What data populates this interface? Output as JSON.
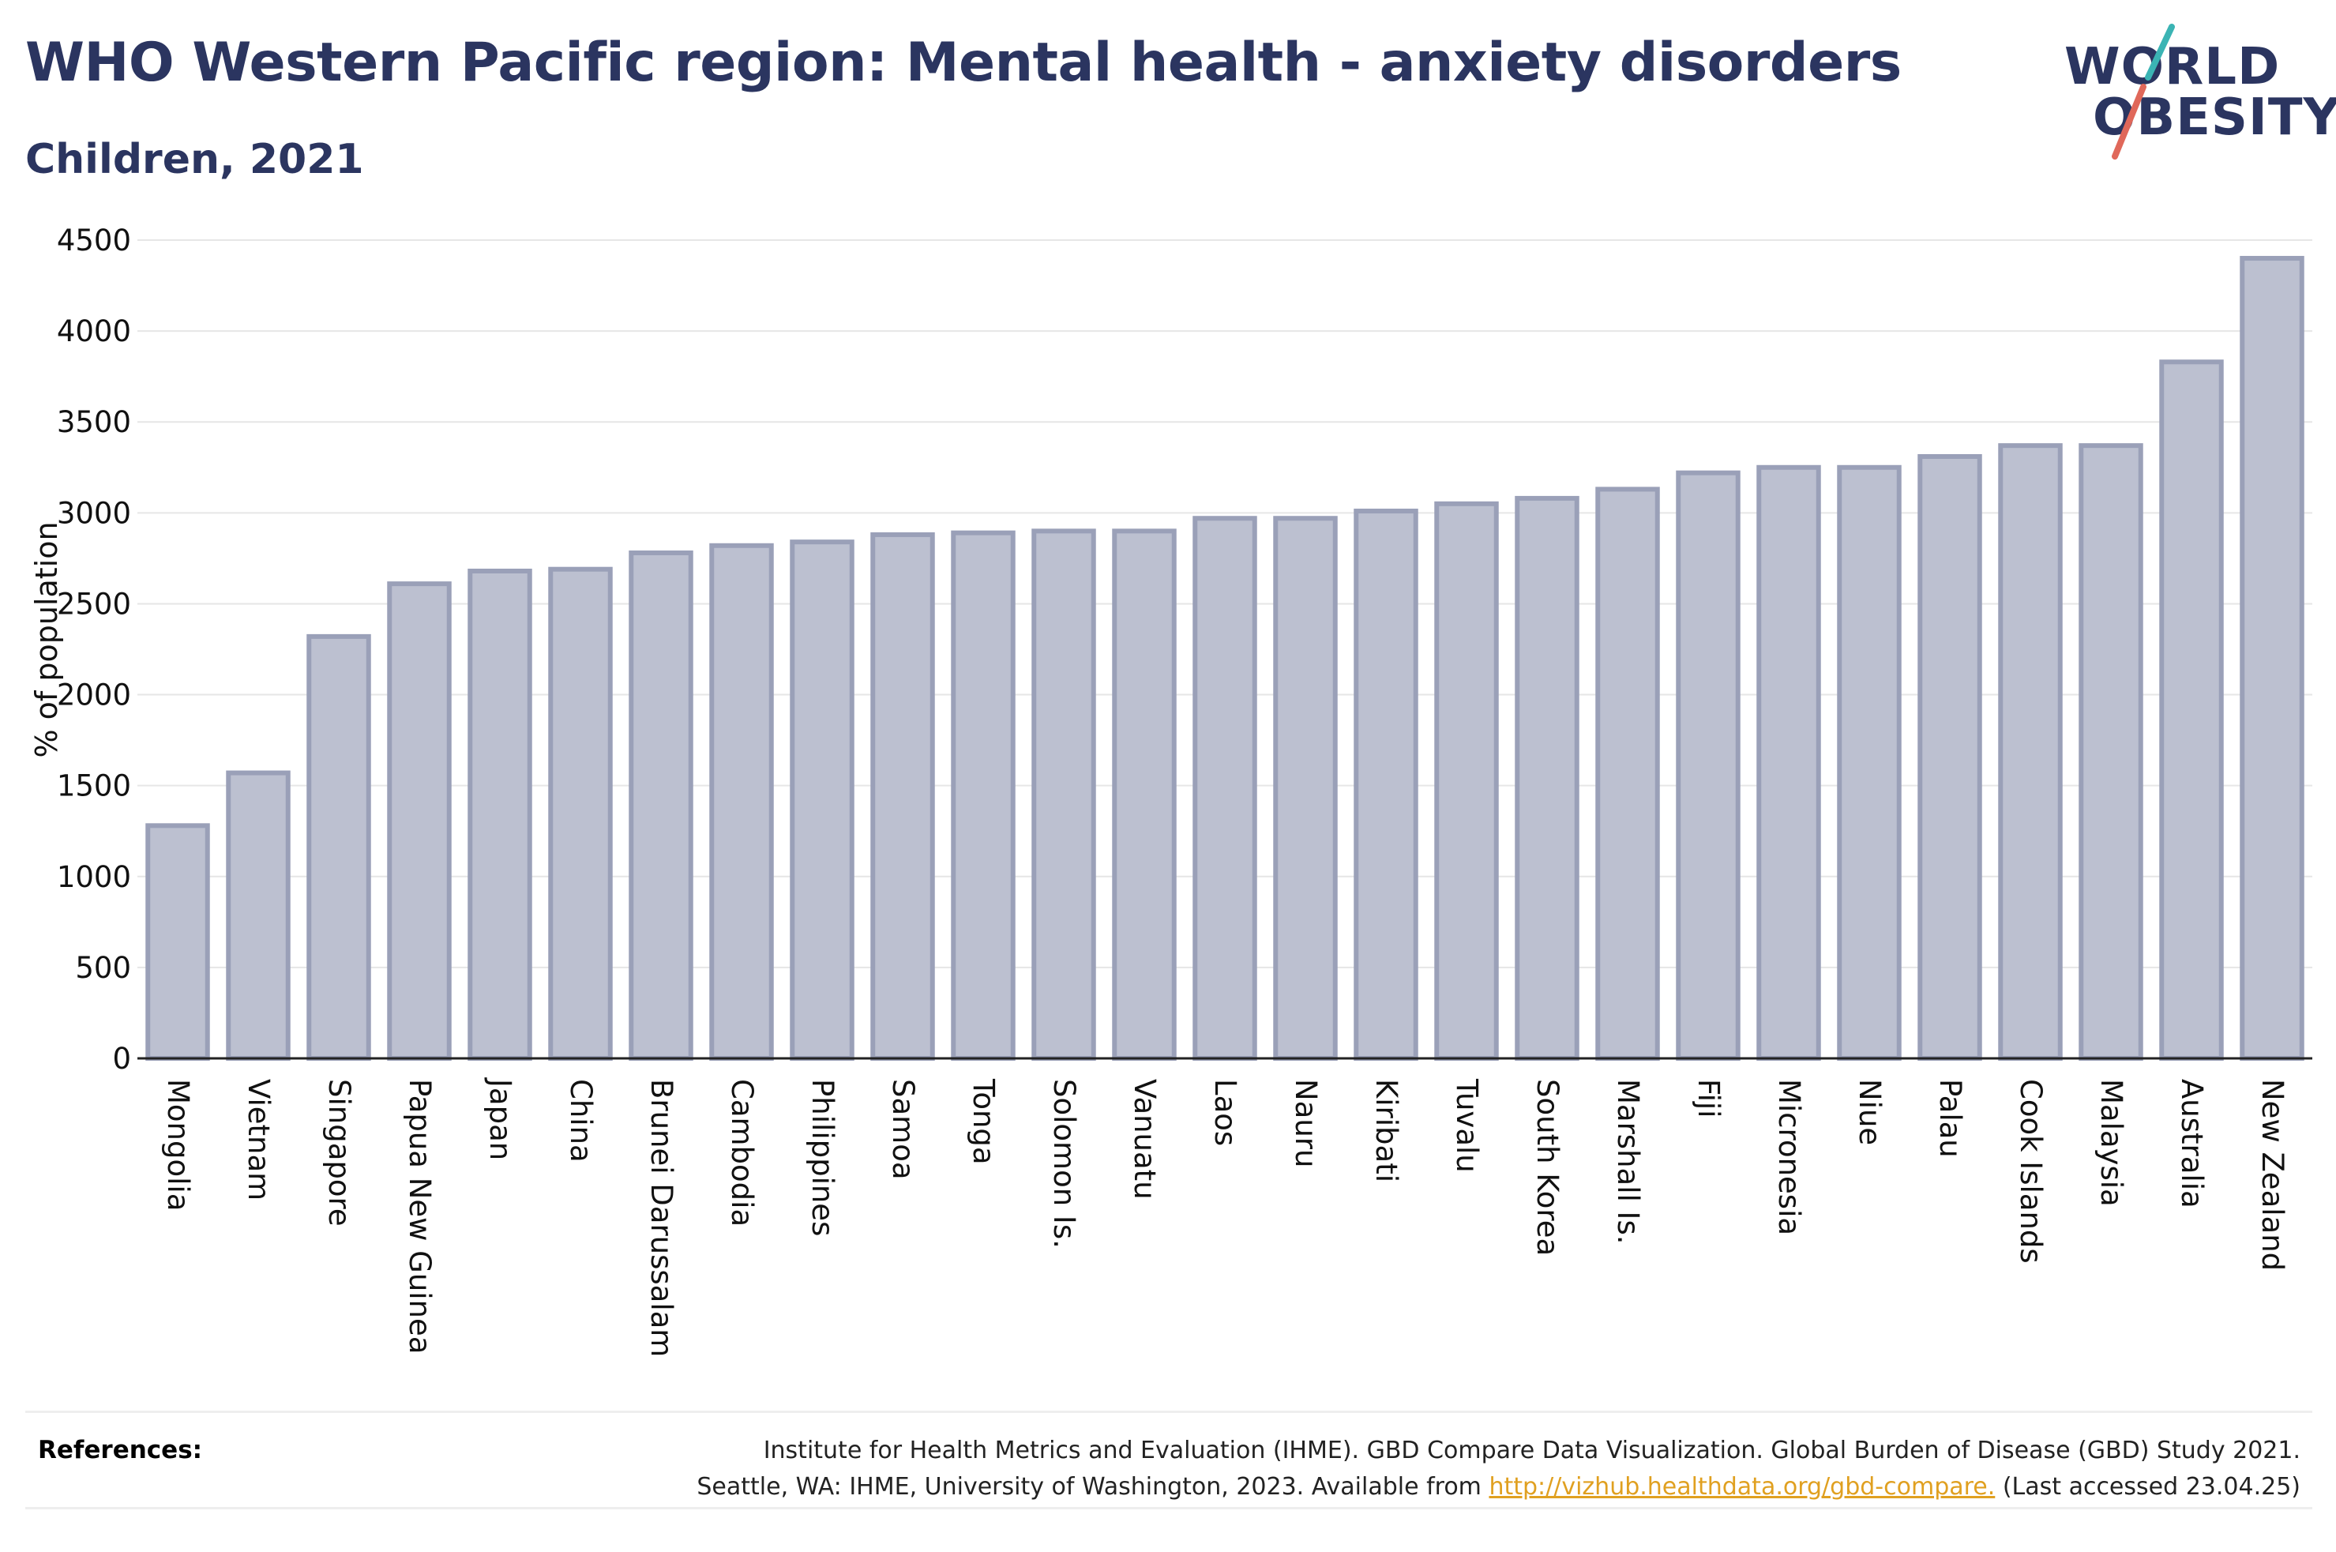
{
  "header": {
    "title": "WHO Western Pacific region: Mental health - anxiety disorders",
    "subtitle": "Children, 2021"
  },
  "logo": {
    "line1": "WORLD",
    "line2": "OBESITY",
    "colors": {
      "text": "#2b3560",
      "slash_top": "#3bb4b4",
      "slash_bottom": "#e0685a"
    }
  },
  "chart_data": {
    "type": "bar",
    "title": "WHO Western Pacific region: Mental health - anxiety disorders",
    "subtitle": "Children, 2021",
    "xlabel": "",
    "ylabel": "% of population",
    "ylim": [
      0,
      4500
    ],
    "yticks": [
      0,
      500,
      1000,
      1500,
      2000,
      2500,
      3000,
      3500,
      4000,
      4500
    ],
    "grid": true,
    "bar_color": "#bcc0d0",
    "bar_edge_color": "#9aa0b8",
    "categories": [
      "Mongolia",
      "Vietnam",
      "Singapore",
      "Papua New Guinea",
      "Japan",
      "China",
      "Brunei Darussalam",
      "Cambodia",
      "Philippines",
      "Samoa",
      "Tonga",
      "Solomon Is.",
      "Vanuatu",
      "Laos",
      "Nauru",
      "Kiribati",
      "Tuvalu",
      "South Korea",
      "Marshall Is.",
      "Fiji",
      "Micronesia",
      "Niue",
      "Palau",
      "Cook Islands",
      "Malaysia",
      "Australia",
      "New Zealand"
    ],
    "values": [
      1280,
      1570,
      2320,
      2610,
      2680,
      2690,
      2780,
      2820,
      2840,
      2880,
      2890,
      2900,
      2900,
      2970,
      2970,
      3010,
      3050,
      3080,
      3130,
      3220,
      3250,
      3250,
      3310,
      3370,
      3370,
      3830,
      4400
    ]
  },
  "references": {
    "label": "References:",
    "line1": "Institute for Health Metrics and Evaluation (IHME). GBD Compare Data Visualization. Global Burden of Disease (GBD) Study 2021.",
    "line2_prefix": "Seattle, WA: IHME, University of Washington, 2023. Available from ",
    "link_text": "http://vizhub.healthdata.org/gbd-compare.",
    "line2_suffix": " (Last accessed 23.04.25)"
  }
}
